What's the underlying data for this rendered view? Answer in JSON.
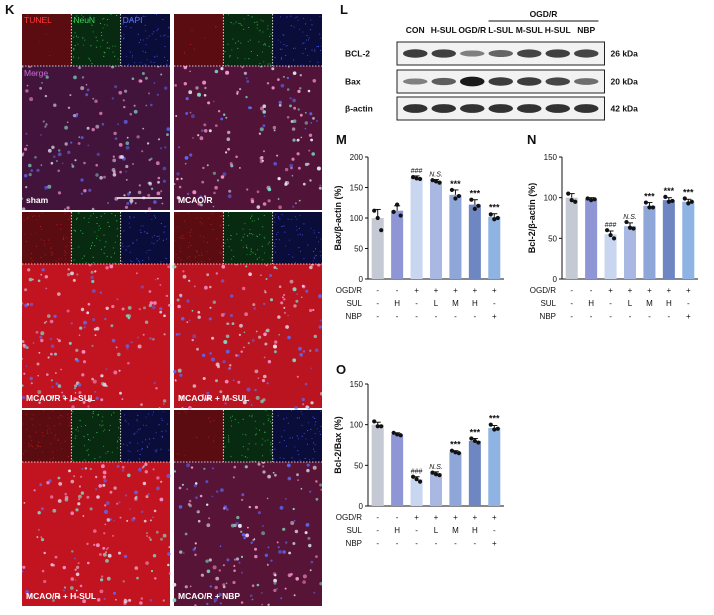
{
  "panels": {
    "K": "K",
    "L": "L",
    "M": "M",
    "N": "N",
    "O": "O"
  },
  "micro": {
    "channels": [
      "TUNEL",
      "NeuN",
      "DAPI"
    ],
    "merge": "Merge",
    "images": [
      {
        "label": "sham",
        "col": 0,
        "row": 0,
        "tunel": 0.05,
        "bright": 0.55
      },
      {
        "label": "MCAO/R",
        "col": 1,
        "row": 0,
        "tunel": 0.15,
        "bright": 0.9
      },
      {
        "label": "MCAO/R + L-SUL",
        "col": 0,
        "row": 1,
        "tunel": 0.95,
        "bright": 0.8
      },
      {
        "label": "MCAO/R + M-SUL",
        "col": 1,
        "row": 1,
        "tunel": 0.9,
        "bright": 0.85
      },
      {
        "label": "MCAO/R + H-SUL",
        "col": 0,
        "row": 2,
        "tunel": 0.95,
        "bright": 0.8
      },
      {
        "label": "MCAO/R + NBP",
        "col": 1,
        "row": 2,
        "tunel": 0.2,
        "bright": 0.9
      }
    ]
  },
  "blot": {
    "lanes": [
      "CON",
      "H-SUL",
      "OGD/R",
      "L-SUL",
      "M-SUL",
      "H-SUL",
      "NBP"
    ],
    "group": "OGD/R",
    "rows": [
      {
        "name": "BCL-2",
        "kda": "26 kDa",
        "intensity": [
          0.75,
          0.72,
          0.35,
          0.5,
          0.7,
          0.72,
          0.7
        ]
      },
      {
        "name": "Bax",
        "kda": "20 kDa",
        "intensity": [
          0.35,
          0.55,
          0.95,
          0.75,
          0.75,
          0.7,
          0.45
        ]
      },
      {
        "name": "β-actin",
        "kda": "42 kDa",
        "intensity": [
          0.8,
          0.8,
          0.8,
          0.8,
          0.8,
          0.8,
          0.8
        ]
      }
    ]
  },
  "treatment": {
    "rows": [
      {
        "name": "OGD/R",
        "signs": [
          "-",
          "-",
          "+",
          "+",
          "+",
          "+",
          "+"
        ]
      },
      {
        "name": "SUL",
        "signs": [
          "-",
          "H",
          "-",
          "L",
          "M",
          "H",
          "-"
        ]
      },
      {
        "name": "NBP",
        "signs": [
          "-",
          "-",
          "-",
          "-",
          "-",
          "-",
          "+"
        ]
      }
    ]
  },
  "colors": {
    "bars": [
      "#c4c9d3",
      "#8e96d6",
      "#c9d6ef",
      "#a9b8e3",
      "#8ea6d8",
      "#6e86c2",
      "#8fb4e3"
    ]
  },
  "chart_data": [
    {
      "type": "bar",
      "panel": "M",
      "ylabel": "Bax/β-actin (%)",
      "ylim": [
        0,
        200
      ],
      "yticks": [
        0,
        50,
        100,
        150,
        200
      ],
      "values": [
        100,
        112,
        166,
        160,
        138,
        122,
        102
      ],
      "errors": [
        14,
        8,
        3,
        3,
        8,
        8,
        5
      ],
      "points": [
        [
          112,
          100,
          80
        ],
        [
          110,
          122,
          104
        ],
        [
          167,
          165,
          164
        ],
        [
          162,
          160,
          158
        ],
        [
          146,
          132,
          136
        ],
        [
          130,
          115,
          120
        ],
        [
          106,
          98,
          100
        ]
      ],
      "annotations": [
        "",
        "",
        "###",
        "N.S.",
        "***",
        "***",
        "***"
      ]
    },
    {
      "type": "bar",
      "panel": "N",
      "ylabel": "Bcl-2/β-actin (%)",
      "ylim": [
        0,
        150
      ],
      "yticks": [
        0,
        50,
        100,
        150
      ],
      "values": [
        100,
        98,
        55,
        65,
        90,
        97,
        95
      ],
      "errors": [
        5,
        2,
        4,
        4,
        4,
        3,
        3
      ],
      "points": [
        [
          105,
          97,
          95
        ],
        [
          99,
          97,
          98
        ],
        [
          60,
          54,
          50
        ],
        [
          70,
          63,
          62
        ],
        [
          94,
          88,
          88
        ],
        [
          101,
          95,
          96
        ],
        [
          99,
          93,
          95
        ]
      ],
      "annotations": [
        "",
        "",
        "###",
        "N.S.",
        "***",
        "***",
        "***"
      ]
    },
    {
      "type": "bar",
      "panel": "O",
      "ylabel": "Bcl-2/Bax (%)",
      "ylim": [
        0,
        150
      ],
      "yticks": [
        0,
        50,
        100,
        150
      ],
      "values": [
        100,
        88,
        33,
        40,
        66,
        80,
        96
      ],
      "errors": [
        3,
        2,
        3,
        2,
        2,
        3,
        3
      ],
      "points": [
        [
          104,
          98,
          98
        ],
        [
          90,
          88,
          87
        ],
        [
          36,
          33,
          30
        ],
        [
          41,
          39,
          38
        ],
        [
          68,
          66,
          65
        ],
        [
          83,
          80,
          78
        ],
        [
          100,
          94,
          95
        ]
      ],
      "annotations": [
        "",
        "",
        "###",
        "N.S.",
        "***",
        "***",
        "***"
      ]
    }
  ]
}
